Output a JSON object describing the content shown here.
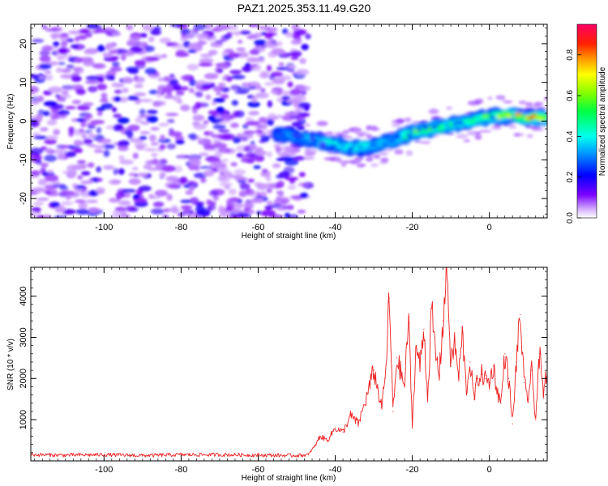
{
  "title": "PAZ1.2025.353.11.49.G20",
  "chart_data": [
    {
      "type": "heatmap",
      "xlabel": "Height of straight line (km)",
      "ylabel": "Frequency (Hz)",
      "xlim": [
        -119,
        15
      ],
      "ylim": [
        -25,
        25
      ],
      "xticks": [
        -100,
        -80,
        -60,
        -40,
        -20,
        0
      ],
      "yticks": [
        -20,
        -10,
        0,
        10,
        20
      ],
      "noise_region_x": [
        -119,
        -47
      ],
      "noise_amplitude_range": [
        0.05,
        0.2
      ],
      "signal_track": {
        "x": [
          -55,
          -50,
          -45,
          -40,
          -35,
          -30,
          -25,
          -20,
          -15,
          -10,
          -5,
          0,
          5,
          10,
          15
        ],
        "freq": [
          -3,
          -4,
          -5,
          -6,
          -7,
          -6.5,
          -5,
          -3,
          -2,
          -1,
          0,
          1,
          1.5,
          1,
          1
        ],
        "peak_amplitude": [
          0.3,
          0.35,
          0.4,
          0.5,
          0.55,
          0.45,
          0.4,
          0.6,
          0.6,
          0.55,
          0.5,
          0.6,
          0.75,
          0.8,
          0.9
        ]
      },
      "colorbar": {
        "label": "Normalized spectral amplitude",
        "range": [
          0,
          0.95
        ],
        "ticks": [
          "0.0",
          "0.2",
          "0.4",
          "0.6",
          "0.8"
        ]
      }
    },
    {
      "type": "line",
      "xlabel": "Height of straight line (km)",
      "ylabel": "SNR (10 * v/v)",
      "xlim": [
        -119,
        15
      ],
      "ylim": [
        0,
        4700
      ],
      "xticks": [
        -100,
        -80,
        -60,
        -40,
        -20,
        0
      ],
      "yticks": [
        1000,
        2000,
        3000,
        4000
      ],
      "color": "#ee2222",
      "series": [
        {
          "name": "SNR",
          "x": [
            -119,
            -110,
            -100,
            -90,
            -80,
            -70,
            -60,
            -50,
            -47,
            -45,
            -44,
            -42,
            -40,
            -38,
            -36,
            -34,
            -32,
            -30,
            -28,
            -27,
            -26,
            -25,
            -24,
            -22,
            -21,
            -20,
            -19,
            -18,
            -17,
            -16,
            -15,
            -14,
            -13,
            -12,
            -11,
            -10,
            -9,
            -8,
            -7,
            -6,
            -5,
            -4,
            -3,
            -2,
            -1,
            0,
            1,
            2,
            3,
            4,
            5,
            6,
            7,
            8,
            9,
            10,
            11,
            12,
            13,
            14,
            15
          ],
          "y": [
            150,
            140,
            150,
            130,
            150,
            150,
            140,
            130,
            150,
            400,
            600,
            500,
            800,
            700,
            1100,
            900,
            1500,
            2200,
            1300,
            2000,
            3950,
            1200,
            2500,
            1800,
            3500,
            900,
            2800,
            2300,
            3200,
            1500,
            3700,
            2600,
            2100,
            3400,
            4700,
            2300,
            2900,
            2000,
            3100,
            1700,
            2400,
            1500,
            2000,
            2100,
            2000,
            1900,
            2300,
            1700,
            1400,
            2600,
            2000,
            900,
            2400,
            3550,
            1900,
            1500,
            2200,
            1000,
            2600,
            1600,
            2300
          ]
        }
      ]
    }
  ]
}
